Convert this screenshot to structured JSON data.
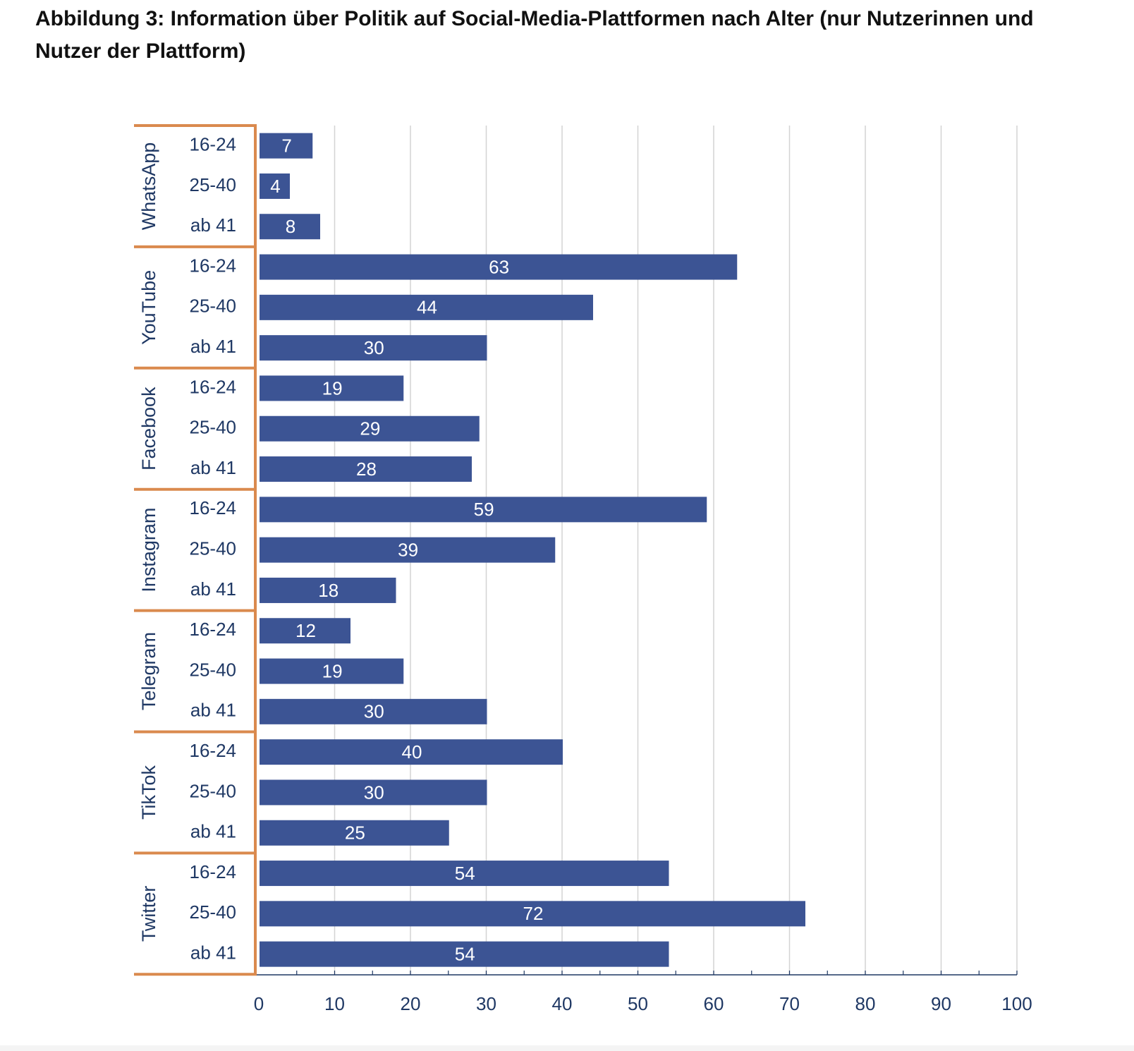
{
  "title": "Abbildung 3: Information über Politik auf Social-Media-Plattformen nach Alter (nur Nutzerinnen und Nutzer der Plattform)",
  "colors": {
    "bar": "#3C5494",
    "bar_label": "#FFFFFF",
    "group_bracket": "#DA8A4E",
    "grid": "#D3D3D3",
    "axis_text": "#1F3864"
  },
  "chart_data": {
    "type": "bar",
    "orientation": "horizontal",
    "groups": [
      {
        "name": "WhatsApp",
        "categories": [
          "16-24",
          "25-40",
          "ab 41"
        ],
        "values": [
          7,
          4,
          8
        ]
      },
      {
        "name": "YouTube",
        "categories": [
          "16-24",
          "25-40",
          "ab 41"
        ],
        "values": [
          63,
          44,
          30
        ]
      },
      {
        "name": "Facebook",
        "categories": [
          "16-24",
          "25-40",
          "ab 41"
        ],
        "values": [
          19,
          29,
          28
        ]
      },
      {
        "name": "Instagram",
        "categories": [
          "16-24",
          "25-40",
          "ab 41"
        ],
        "values": [
          59,
          39,
          18
        ]
      },
      {
        "name": "Telegram",
        "categories": [
          "16-24",
          "25-40",
          "ab 41"
        ],
        "values": [
          12,
          19,
          30
        ]
      },
      {
        "name": "TikTok",
        "categories": [
          "16-24",
          "25-40",
          "ab 41"
        ],
        "values": [
          40,
          30,
          25
        ]
      },
      {
        "name": "Twitter",
        "categories": [
          "16-24",
          "25-40",
          "ab 41"
        ],
        "values": [
          54,
          72,
          54
        ]
      }
    ],
    "xlim": [
      0,
      100
    ],
    "xticks": [
      0,
      10,
      20,
      30,
      40,
      50,
      60,
      70,
      80,
      90,
      100
    ],
    "grid": true,
    "data_labels": true,
    "legend": false
  }
}
